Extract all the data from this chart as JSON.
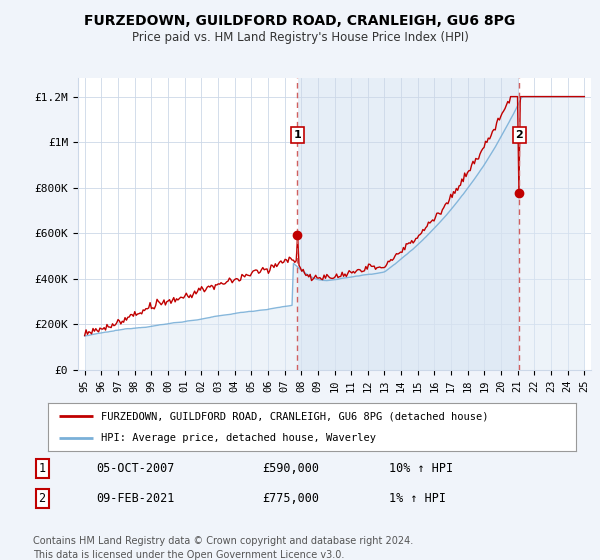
{
  "title": "FURZEDOWN, GUILDFORD ROAD, CRANLEIGH, GU6 8PG",
  "subtitle": "Price paid vs. HM Land Registry's House Price Index (HPI)",
  "y_ticks": [
    0,
    200000,
    400000,
    600000,
    800000,
    1000000,
    1200000
  ],
  "y_tick_labels": [
    "£0",
    "£200K",
    "£400K",
    "£600K",
    "£800K",
    "£1M",
    "£1.2M"
  ],
  "ylim": [
    0,
    1280000
  ],
  "x_start_year": 1995,
  "x_end_year": 2025,
  "hpi_fill_color": "#dce8f5",
  "hpi_line_color": "#7ab0d8",
  "sold_color": "#c00000",
  "vline_color": "#d06060",
  "marker1_date": 2007.77,
  "marker2_date": 2021.1,
  "marker1_price": 590000,
  "marker2_price": 775000,
  "legend_label1": "FURZEDOWN, GUILDFORD ROAD, CRANLEIGH, GU6 8PG (detached house)",
  "legend_label2": "HPI: Average price, detached house, Waverley",
  "note1_num": "1",
  "note1_date": "05-OCT-2007",
  "note1_price": "£590,000",
  "note1_change": "10% ↑ HPI",
  "note2_num": "2",
  "note2_date": "09-FEB-2021",
  "note2_price": "£775,000",
  "note2_change": "1% ↑ HPI",
  "footer": "Contains HM Land Registry data © Crown copyright and database right 2024.\nThis data is licensed under the Open Government Licence v3.0.",
  "background_color": "#f0f4fa",
  "plot_bg_color": "#ffffff",
  "grid_color": "#ccd8e8"
}
